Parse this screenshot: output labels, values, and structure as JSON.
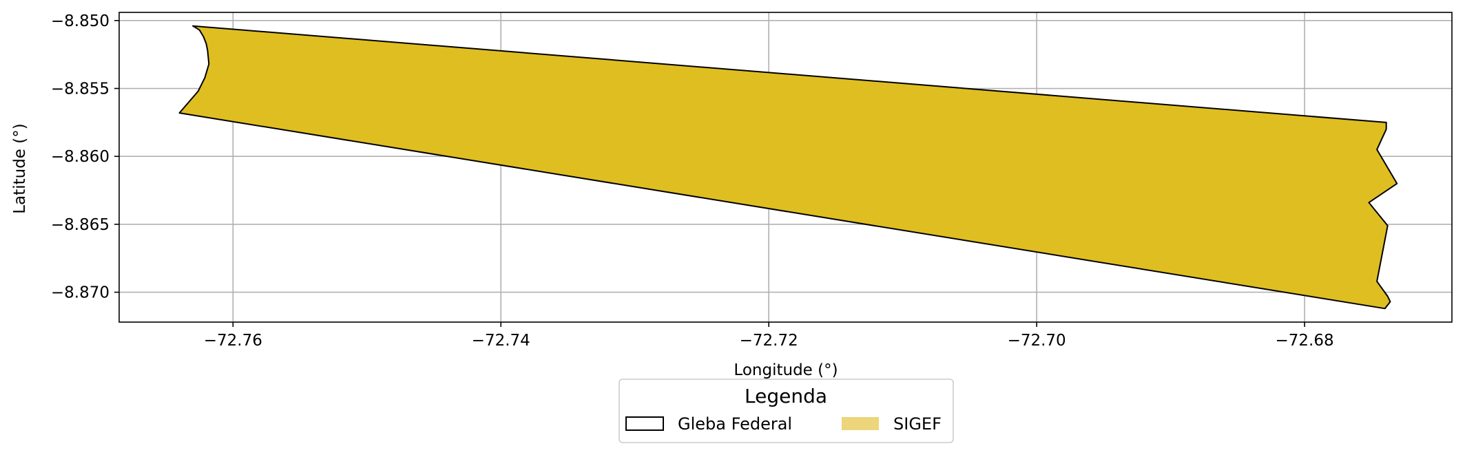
{
  "chart_data": {
    "type": "map",
    "xlabel": "Longitude (°)",
    "ylabel": "Latitude (°)",
    "xlim": [
      -72.7685,
      -72.669
    ],
    "ylim": [
      -8.8722,
      -8.8494
    ],
    "xticks": [
      -72.76,
      -72.74,
      -72.72,
      -72.7,
      -72.68
    ],
    "xtick_labels": [
      "−72.76",
      "−72.74",
      "−72.72",
      "−72.70",
      "−72.68"
    ],
    "yticks": [
      -8.85,
      -8.855,
      -8.86,
      -8.865,
      -8.87
    ],
    "ytick_labels": [
      "−8.850",
      "−8.855",
      "−8.860",
      "−8.865",
      "−8.870"
    ],
    "grid": true,
    "legend": {
      "title": "Legenda",
      "placement": "bottom-center",
      "entries": [
        {
          "label": "Gleba Federal",
          "style": "outline",
          "color": "#000000"
        },
        {
          "label": "SIGEF",
          "style": "filled",
          "color": "#ecd57a"
        }
      ]
    },
    "polygons": [
      {
        "layer": "SIGEF",
        "fill": "#dfbe22",
        "stroke": "#000000",
        "coordinates": [
          [
            -72.763,
            -8.8504
          ],
          [
            -72.7625,
            -8.8507
          ],
          [
            -72.7622,
            -8.8512
          ],
          [
            -72.762,
            -8.8517
          ],
          [
            -72.7619,
            -8.8522
          ],
          [
            -72.7618,
            -8.8532
          ],
          [
            -72.7621,
            -8.8542
          ],
          [
            -72.7626,
            -8.8552
          ],
          [
            -72.764,
            -8.8568
          ],
          [
            -72.674,
            -8.8712
          ],
          [
            -72.6736,
            -8.8707
          ],
          [
            -72.6738,
            -8.8703
          ],
          [
            -72.6746,
            -8.8692
          ],
          [
            -72.6738,
            -8.8651
          ],
          [
            -72.6752,
            -8.8634
          ],
          [
            -72.6731,
            -8.862
          ],
          [
            -72.6746,
            -8.8595
          ],
          [
            -72.6739,
            -8.858
          ],
          [
            -72.6739,
            -8.8575
          ]
        ]
      }
    ]
  }
}
